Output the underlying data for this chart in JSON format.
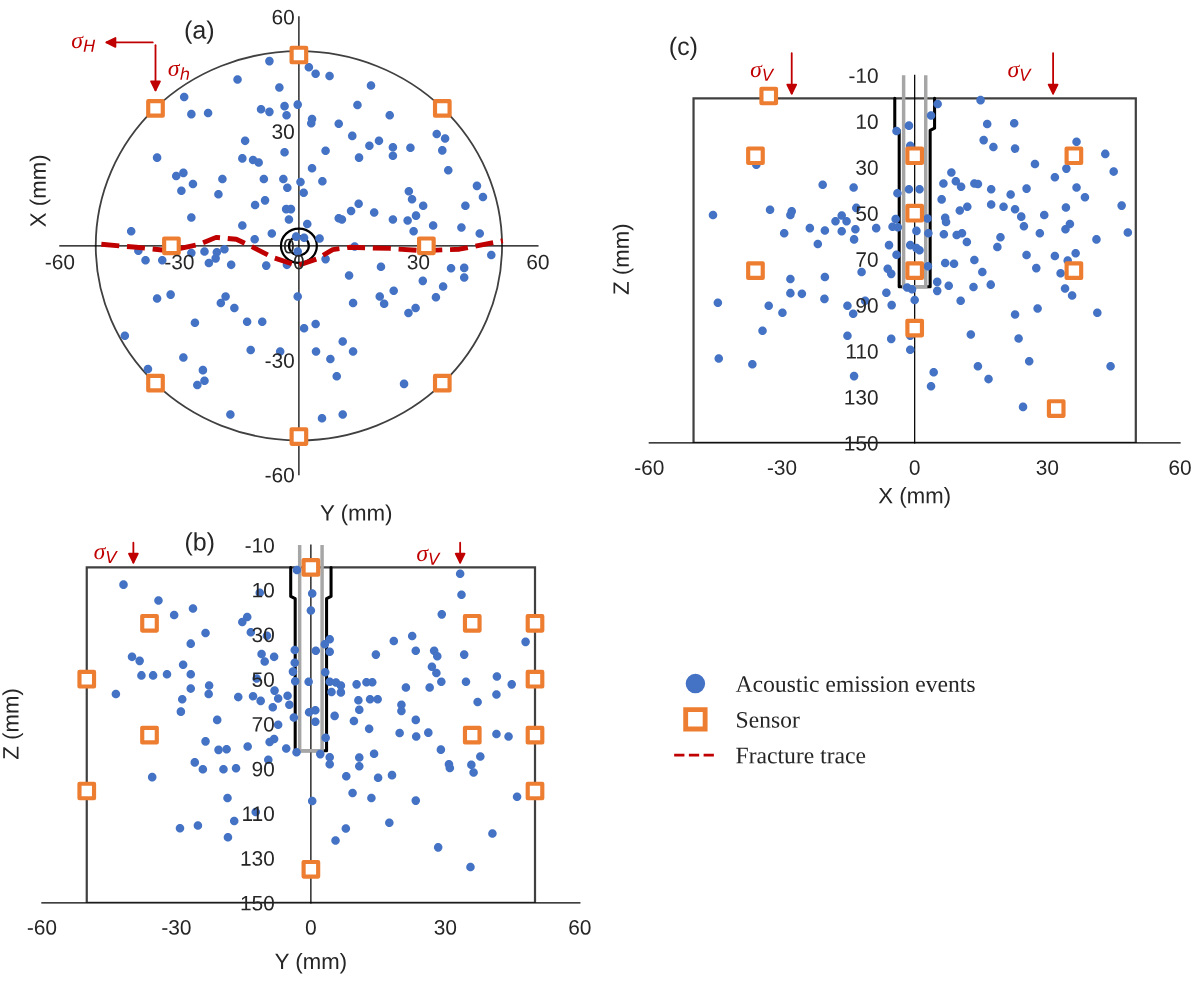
{
  "chart_data": [
    {
      "type": "scatter",
      "xlabel": "Y (mm)",
      "ylabel": "X (mm)",
      "xlim": [
        -60,
        60
      ],
      "ylim": [
        -60,
        60
      ],
      "xticks": [
        -60,
        -30,
        0,
        30,
        60
      ],
      "yticks": [
        -60,
        -30,
        0,
        30,
        60
      ],
      "annotations": [
        "(a)",
        "σ$_{H}$",
        "σ$_{h}$"
      ],
      "legend": "bottom right",
      "series": [
        {
          "name": "Acoustic emission events",
          "color": "#4472c4",
          "marker": "circle",
          "x": [
            -7.4,
            2.5,
            4.2,
            7.7,
            -15.4,
            18.1,
            -4.9,
            -28.8,
            -0.3,
            -3.6,
            14.7,
            -9.5,
            -7.4,
            -27.0,
            -22.8,
            -3.1,
            22.8,
            3.3,
            3.1,
            10.0,
            34.6,
            13.4,
            36.7,
            20.1,
            -13.5,
            17.7,
            23.6,
            28.0,
            36.0,
            6.7,
            -3.6,
            23.6,
            15.1,
            -35.6,
            -14.2,
            -11.5,
            -10.1,
            3.3,
            37.5,
            -30.8,
            -29.0,
            -19.2,
            -8.8,
            -3.9,
            5.9,
            0.4,
            -26.6,
            44.7,
            -2.9,
            -29.5,
            27.6,
            -20.2,
            1.2,
            46.2,
            28.4,
            -8.5,
            -11.0,
            15.0,
            31.2,
            41.8,
            -3.2,
            -2.0,
            13.1,
            18.9,
            29.4,
            -27.0,
            10.0,
            10.8,
            23.6,
            27.3,
            -2.5,
            2.1,
            33.7,
            -14.2,
            40.8,
            -42.1,
            28.8,
            45.4,
            -6.8,
            -11.1,
            5.2,
            14.0,
            -40.3,
            -18.7,
            -27.0,
            -23.7,
            -20.6,
            48.3,
            -38.5,
            -34.3,
            -20.9,
            -22.6,
            -17.0,
            -8.2,
            -3.0,
            6.7,
            20.6,
            38.2,
            41.5,
            41.5,
            12.6,
            31.1,
            36.2,
            -0.3,
            -35.6,
            -32.2,
            -18.4,
            23.8,
            20.3,
            34.4,
            21.4,
            -19.6,
            13.6,
            -16.2,
            29.3,
            27.5,
            -26.1,
            -13.0,
            -9.2,
            4.2,
            1.3,
            -43.7,
            11.0,
            -12.1,
            -4.7,
            4.3,
            13.6,
            -29.0,
            7.9,
            -37.9,
            -24.1,
            9.5,
            -23.7,
            -25.5,
            26.4,
            -17.2,
            5.8,
            11.0,
            -0.7,
            1.3,
            -0.3
          ],
          "values": [
            48.4,
            46.8,
            45.1,
            44.5,
            43.6,
            42.0,
            41.5,
            39.0,
            37.0,
            36.6,
            36.9,
            35.8,
            35.1,
            34.5,
            34.8,
            34.2,
            34.2,
            33.2,
            32.1,
            32.0,
            29.3,
            28.8,
            28.1,
            27.5,
            27.5,
            26.2,
            25.8,
            25.7,
            25.0,
            24.9,
            24.5,
            23.6,
            23.1,
            23.1,
            22.9,
            22.5,
            21.8,
            20.3,
            19.8,
            18.3,
            19.1,
            17.5,
            17.5,
            17.5,
            16.9,
            16.7,
            16.2,
            15.7,
            15.2,
            14.4,
            14.3,
            13.5,
            13.9,
            12.8,
            12.2,
            11.9,
            10.7,
            11.0,
            10.5,
            10.5,
            9.6,
            9.6,
            9.1,
            8.7,
            7.9,
            7.4,
            7.2,
            6.9,
            6.9,
            6.6,
            6.9,
            5.7,
            5.3,
            5.3,
            4.8,
            3.8,
            3.8,
            3.2,
            3.2,
            1.7,
            1.9,
            -0.2,
            -1.3,
            -0.9,
            -1.9,
            -1.5,
            -1.7,
            -2.4,
            -3.8,
            -3.8,
            -3.3,
            -4.5,
            -5.0,
            -5.2,
            -5.0,
            -3.5,
            -5.5,
            -5.9,
            -5.8,
            -8.3,
            -7.8,
            -9.2,
            -10.7,
            -13.3,
            -13.8,
            -12.8,
            -13.3,
            -11.8,
            -13.3,
            -13.5,
            -15.2,
            -15.0,
            -15.0,
            -16.3,
            -16.3,
            -17.6,
            -20.2,
            -19.9,
            -19.9,
            -20.5,
            -21.6,
            -23.6,
            -25.1,
            -27.3,
            -27.7,
            -27.7,
            -27.7,
            -29.3,
            -29.7,
            -32.3,
            -32.6,
            -34.2,
            -35.4,
            -36.5,
            -36.2,
            -44.2,
            -45.2,
            -44.2,
            2.4,
            2.1,
            -1.5
          ]
        },
        {
          "name": "Sensor",
          "color": "#ed7d31",
          "marker": "square",
          "x": [
            0,
            -36,
            36,
            -32,
            32,
            -36,
            36,
            0
          ],
          "values": [
            50,
            36,
            36,
            0,
            0,
            -36,
            -36,
            -50
          ]
        },
        {
          "name": "Fracture trace",
          "type": "line",
          "color": "#c00000",
          "line_style": "dashed",
          "marker": "none",
          "x": [
            -49.6,
            -40.8,
            -32.5,
            -25,
            -20.8,
            -15.7,
            -11.5,
            -6.5,
            -0.3,
            4.4,
            8.5,
            12.7,
            22.8,
            31.1,
            40.3,
            51.2
          ],
          "values": [
            0.4,
            -0.4,
            -1.3,
            0.4,
            2.2,
            1.7,
            -0.4,
            -3.1,
            -5.2,
            -3.5,
            -1,
            -0.4,
            -0.7,
            -1.3,
            -0.9,
            1.3
          ]
        }
      ]
    },
    {
      "type": "scatter",
      "xlabel": "Y (mm)",
      "ylabel": "Z (mm)",
      "xlim": [
        -60,
        60
      ],
      "ylim": [
        150,
        -10
      ],
      "xticks": [
        -60,
        -30,
        0,
        30,
        60
      ],
      "yticks": [
        -10,
        10,
        30,
        50,
        70,
        90,
        110,
        130,
        150
      ],
      "annotations": [
        "(b)",
        "σ$_{V}$",
        "σ$_{V}$"
      ],
      "series": [
        {
          "name": "Acoustic emission events",
          "color": "#4472c4",
          "marker": "circle",
          "x": [
            -41.8,
            -3.1,
            33.3,
            -11.4,
            0.3,
            33.6,
            -34,
            -26.3,
            0,
            -30.5,
            29.2,
            -14.2,
            -15.3,
            -23.5,
            -13.4,
            -9.8,
            22.6,
            18.5,
            47.9,
            -26.8,
            4.2,
            3.1,
            -3.6,
            1.1,
            4.2,
            23.4,
            27.5,
            14.5,
            28.2,
            34.2,
            -11,
            -8.2,
            -39.9,
            -38.2,
            -10.3,
            -3.6,
            -28.5,
            27,
            -4,
            3.2,
            28,
            -37.8,
            -35.2,
            -32.1,
            -26.8,
            41.5,
            -12.1,
            -3.5,
            -0.5,
            4.2,
            29.1,
            34.6,
            5.6,
            10.2,
            12.4,
            13.7,
            6.7,
            44.8,
            -22.7,
            21.2,
            26.5,
            -26.8,
            -8.1,
            4.6,
            6.7,
            -43.5,
            -22.8,
            41.4,
            -16.2,
            -12.9,
            -5.2,
            -7.3,
            -11.2,
            -28.7,
            10.6,
            13.2,
            14.9,
            37.2,
            20.2,
            -4.8,
            -8.5,
            20.2,
            10.8,
            -29,
            -0.4,
            1,
            5.3,
            -20.9,
            23.4,
            9.6,
            1,
            -3.8,
            -7.3,
            26.2,
            19.8,
            13,
            23.5,
            41.4,
            44.1,
            3.3,
            -8.2,
            -9.2,
            -23.5,
            -14.1,
            -20.6,
            -18.8,
            29,
            -5.5,
            -3.2,
            2.1,
            14.1,
            37.8,
            4.2,
            10.8,
            -9.5,
            -25.9,
            4.2,
            30.8,
            31,
            35.8,
            36.3,
            -24.1,
            -19.5,
            -16.7,
            10.8,
            7.9,
            18.1,
            15,
            -35.4,
            9.3,
            13.5,
            -18.6,
            46,
            0.3,
            23.4,
            -12.3,
            -17.1,
            17.5,
            -25.2,
            -29.2,
            7.8,
            40.5,
            -18.5,
            5.5,
            28.4,
            35.6
          ],
          "values": [
            7.7,
            1.2,
            2.8,
            11.3,
            11.7,
            12.2,
            14.8,
            18.4,
            19.3,
            21.3,
            21,
            22.2,
            24.4,
            29.3,
            29,
            30.6,
            30.7,
            32.9,
            33.3,
            34.1,
            32.1,
            34.4,
            36.9,
            37.3,
            37.7,
            37.3,
            37.3,
            39,
            39.7,
            39,
            38.7,
            40,
            40,
            41.8,
            42.1,
            42.6,
            43.5,
            44.4,
            46.6,
            46.9,
            47.2,
            48.3,
            48.3,
            47.8,
            47.8,
            48.8,
            49.7,
            50.9,
            51.1,
            51.1,
            51.1,
            51.1,
            51.5,
            52.3,
            51.4,
            51.4,
            52.8,
            52.3,
            52.8,
            53.7,
            53.7,
            54.2,
            55.1,
            55.7,
            55.9,
            56.6,
            56.6,
            56.8,
            58,
            57.6,
            57.4,
            58.6,
            59.7,
            59,
            59.4,
            59,
            59,
            60.2,
            61.4,
            61.4,
            62.5,
            64.2,
            63.7,
            64.5,
            64.8,
            63.9,
            66.4,
            68.2,
            68.2,
            68.7,
            69,
            67.1,
            70.4,
            73.9,
            74.1,
            72.2,
            75.6,
            74.5,
            75.6,
            76.2,
            76.7,
            78.1,
            77.8,
            80.1,
            81.6,
            81.3,
            81.5,
            81,
            82.7,
            83.5,
            83.3,
            84.6,
            84.9,
            85,
            86,
            87.2,
            88,
            88,
            89.7,
            88.3,
            91.7,
            90.3,
            90.3,
            89.8,
            88.9,
            93.4,
            92.9,
            94.1,
            93.8,
            100.9,
            103.1,
            103.1,
            102.6,
            104.5,
            104.3,
            109.4,
            113.4,
            114.2,
            115.4,
            116.7,
            116.8,
            119,
            120.7,
            122.1,
            125.2,
            134
          ]
        },
        {
          "name": "Sensor",
          "color": "#ed7d31",
          "marker": "square",
          "x": [
            0,
            -36,
            36,
            50,
            -50,
            50,
            -36,
            36,
            50,
            -50,
            50,
            0
          ],
          "values": [
            0,
            25,
            25,
            25,
            50,
            50,
            75,
            75,
            75,
            100,
            100,
            135
          ]
        }
      ]
    },
    {
      "type": "scatter",
      "xlabel": "X (mm)",
      "ylabel": "Z (mm)",
      "xlim": [
        -60,
        60
      ],
      "ylim": [
        150,
        -10
      ],
      "xticks": [
        -60,
        -30,
        0,
        30,
        60
      ],
      "yticks": [
        -10,
        10,
        30,
        50,
        70,
        90,
        110,
        130,
        150
      ],
      "annotations": [
        "(c)",
        "σ$_{V}$",
        "σ$_{V}$"
      ],
      "series": [
        {
          "name": "Acoustic emission events",
          "color": "#4472c4",
          "marker": "circle",
          "x": [
            5.2,
            14.9,
            3.7,
            16.4,
            22.5,
            -1.3,
            -4.1,
            15.6,
            17.8,
            36.6,
            -1,
            22.7,
            43.1,
            -35.8,
            27.2,
            34.3,
            45,
            31.7,
            8.3,
            9.3,
            6.5,
            10.5,
            13.5,
            14.3,
            17.3,
            25.3,
            36.6,
            -20.8,
            -13.8,
            21.7,
            38.5,
            -3.9,
            -1.3,
            1.1,
            6.1,
            11.9,
            17.3,
            20.1,
            22.7,
            34.2,
            46.8,
            10.2,
            -13.2,
            -32.7,
            -27.8,
            -45.6,
            -28.1,
            24.1,
            29.3,
            -16.5,
            -17.9,
            -15.4,
            -4.3,
            2.9,
            6.9,
            7.1,
            35.1,
            24.7,
            34.1,
            -5,
            -3.8,
            -23.7,
            -20.3,
            -16.5,
            -13.4,
            -8.7,
            -29.5,
            0.4,
            3.1,
            6.6,
            9.5,
            10.7,
            28.3,
            48.2,
            19.4,
            41.1,
            -13.7,
            11.8,
            -21.9,
            -1,
            0.4,
            1.1,
            18.7,
            36.4,
            -5.8,
            -4.1,
            25.3,
            31.7,
            34.6,
            13.5,
            6.9,
            8.9,
            3,
            27.5,
            -12,
            -6.1,
            -5.3,
            15.3,
            33,
            -20.3,
            -28.1,
            5.1,
            13.3,
            17.2,
            7.7,
            34,
            35.6,
            -1.7,
            -0.6,
            5.1,
            -6.4,
            -28.1,
            -25.5,
            -20.4,
            0,
            -11.2,
            10.4,
            -44.5,
            -33,
            -15.2,
            -5.2,
            27.8,
            41.3,
            -29.9,
            -13.9,
            22.7,
            -34.4,
            12.7,
            -15.2,
            -1,
            -5.3,
            23.5,
            -1,
            -44.3,
            -36.7,
            25.9,
            14.3,
            44.3,
            4.3,
            -13.7,
            16.7,
            3.7,
            24.5
          ],
          "values": [
            2.5,
            0.8,
            7.5,
            11.2,
            10.9,
            11.9,
            14.2,
            18.2,
            21.2,
            18.9,
            20.7,
            21.9,
            24.2,
            28.9,
            28.6,
            30.6,
            31.9,
            34.4,
            32.3,
            36.1,
            37.1,
            38.5,
            37.1,
            37.3,
            39.6,
            39.3,
            38.8,
            37.6,
            38.8,
            41.9,
            43.1,
            41.3,
            39.6,
            39.6,
            44,
            47.2,
            46.2,
            47.2,
            48.3,
            47.5,
            46.7,
            48.8,
            47.7,
            48.5,
            49.2,
            50.8,
            50.8,
            51.5,
            50.8,
            51,
            53.5,
            53.5,
            52.5,
            52.3,
            52,
            53.8,
            54.7,
            55.7,
            57,
            55.9,
            56.1,
            56.5,
            57.5,
            57.9,
            57,
            56.5,
            58.7,
            57.7,
            58.7,
            59.2,
            59.5,
            58.7,
            58.7,
            58.4,
            60.5,
            61.4,
            61.4,
            62.5,
            63.4,
            63.9,
            65.2,
            66.1,
            64.7,
            67.4,
            63.9,
            68.1,
            68.2,
            68.6,
            70.6,
            70.4,
            71.7,
            72,
            73.1,
            73.9,
            75.6,
            74.2,
            76.4,
            75.6,
            76.1,
            77.8,
            78.6,
            79.9,
            82.1,
            81.1,
            81.6,
            82.8,
            85.8,
            82.3,
            83.1,
            83.8,
            84.6,
            84.8,
            85.1,
            87.3,
            87.8,
            88.1,
            88.1,
            89,
            90.3,
            90.3,
            90,
            91.5,
            93.3,
            93.3,
            93.8,
            94.1,
            101.2,
            102.8,
            103.3,
            103.3,
            104.7,
            104.5,
            109.4,
            113.2,
            115.7,
            114.4,
            116.6,
            116.6,
            119.2,
            120.9,
            122.2,
            125.3,
            134.3
          ]
        },
        {
          "name": "Sensor",
          "color": "#ed7d31",
          "marker": "square",
          "x": [
            -33,
            -36,
            0,
            36,
            0,
            -36,
            0,
            36,
            0,
            32
          ],
          "values": [
            -1,
            25,
            25,
            25,
            50,
            75,
            75,
            75,
            100,
            135
          ]
        }
      ]
    }
  ]
}
